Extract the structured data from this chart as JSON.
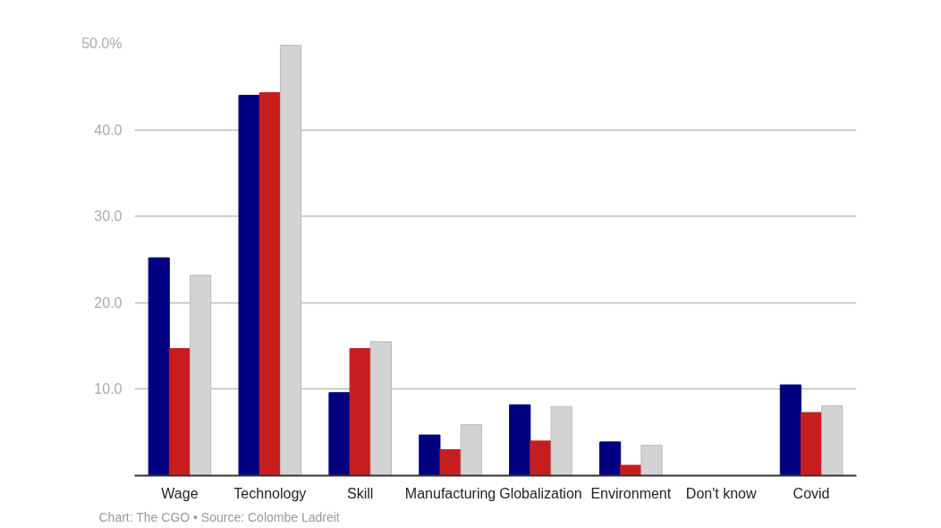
{
  "chart_data": {
    "type": "bar",
    "categories": [
      "Wage",
      "Technology",
      "Skill",
      "Manufacturing",
      "Globalization",
      "Environment",
      "Don't know",
      "Covid"
    ],
    "series": [
      {
        "color": "#000080",
        "values": [
          25.2,
          44.0,
          9.6,
          4.7,
          8.2,
          3.9,
          0,
          10.5
        ]
      },
      {
        "color": "#c61e1e",
        "values": [
          14.7,
          44.3,
          14.7,
          3.0,
          4.0,
          1.2,
          0,
          7.3
        ]
      },
      {
        "color": "#d3d3d3",
        "values": [
          23.2,
          49.8,
          15.5,
          5.9,
          8.0,
          3.5,
          0,
          8.1
        ]
      }
    ],
    "ylim": [
      0,
      50
    ],
    "yticks": [
      {
        "value": 10,
        "label": "10.0"
      },
      {
        "value": 20,
        "label": "20.0"
      },
      {
        "value": 30,
        "label": "30.0"
      },
      {
        "value": 40,
        "label": "40.0"
      },
      {
        "value": 50,
        "label": "50.0%"
      }
    ],
    "grid": "y",
    "annotations": [
      "Chart: The CGO • Source: Colombe Ladreit"
    ]
  }
}
